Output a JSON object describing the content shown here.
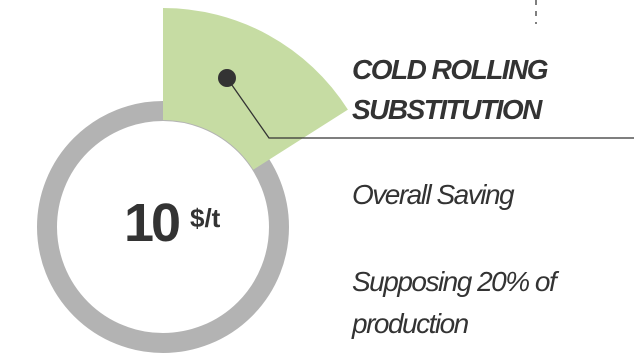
{
  "colors": {
    "ring": "#b3b3b3",
    "sector": "#c6dca3",
    "text": "#333333",
    "marker": "#333333",
    "leader_line": "#333333"
  },
  "chart_data": {
    "type": "pie",
    "description_value": "10",
    "unit": "$/t",
    "highlighted_share_percent": 20,
    "label": "COLD ROLLING SUBSTITUTION"
  },
  "value": {
    "number": "10",
    "unit": "$/t"
  },
  "title": {
    "line1": "COLD ROLLING",
    "line2": "SUBSTITUTION"
  },
  "notes": {
    "overall": "Overall Saving",
    "supposing": "Supposing 20% of production"
  }
}
